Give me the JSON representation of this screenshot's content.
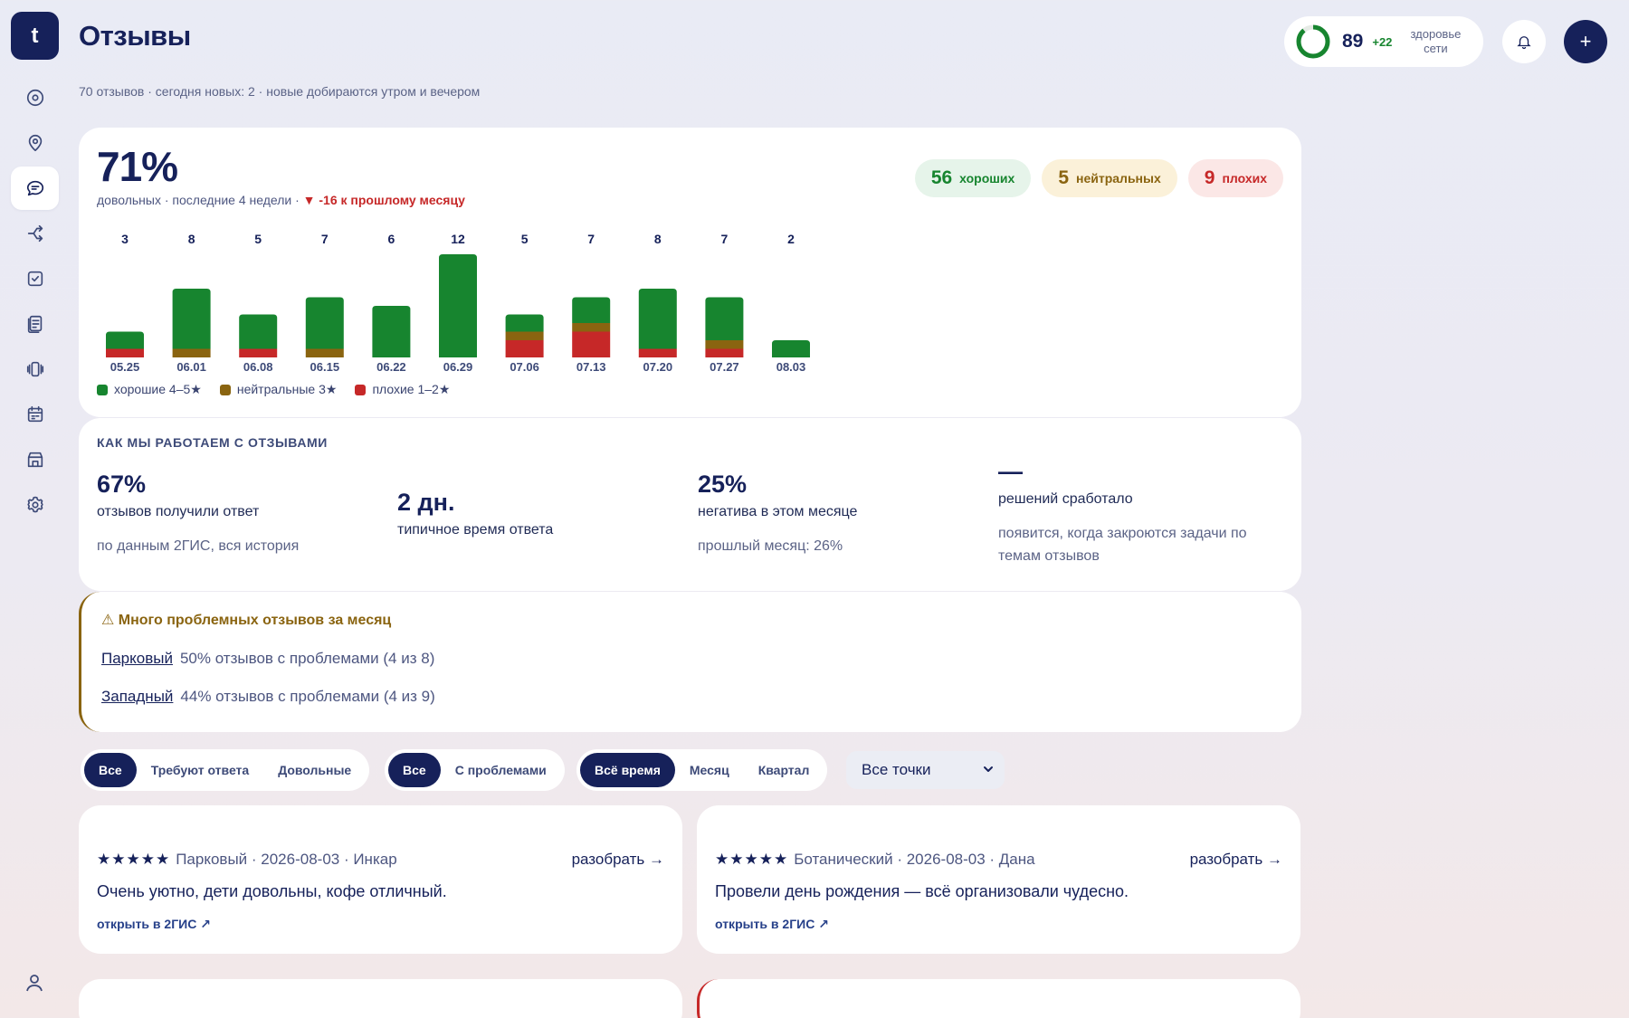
{
  "app": {
    "logo_letter": "t",
    "title": "Отзывы",
    "subtitle": "70 отзывов · сегодня новых: 2 · новые добираются утром и вечером"
  },
  "health": {
    "score": "89",
    "delta": "+22",
    "label": "здоровье сети",
    "fraction": 0.89,
    "color": "#17852f"
  },
  "sidebar": {
    "items": [
      {
        "name": "dashboard-icon"
      },
      {
        "name": "location-pin-icon"
      },
      {
        "name": "reviews-icon",
        "active": true
      },
      {
        "name": "share-icon"
      },
      {
        "name": "tasks-icon"
      },
      {
        "name": "documents-icon"
      },
      {
        "name": "devices-icon"
      },
      {
        "name": "calendar-icon"
      },
      {
        "name": "store-icon"
      },
      {
        "name": "settings-icon"
      }
    ],
    "bottom": "user-icon"
  },
  "summary": {
    "percent": "71%",
    "sub_prefix": "довольных · последние 4 недели · ",
    "sub_change": "▼ -16 к прошлому месяцу",
    "pills": [
      {
        "num": "56",
        "label": "хороших",
        "kind": "good"
      },
      {
        "num": "5",
        "label": "нейтральных",
        "kind": "neutral"
      },
      {
        "num": "9",
        "label": "плохих",
        "kind": "bad"
      }
    ]
  },
  "chart_data": {
    "type": "bar",
    "stacked": true,
    "categories": [
      "05.25",
      "06.01",
      "06.08",
      "06.15",
      "06.22",
      "06.29",
      "07.06",
      "07.13",
      "07.20",
      "07.27",
      "08.03"
    ],
    "totals": [
      3,
      8,
      5,
      7,
      6,
      12,
      5,
      7,
      8,
      7,
      2
    ],
    "series": [
      {
        "name": "хорошие 4–5★",
        "color": "#17852f",
        "values": [
          2,
          7,
          4,
          6,
          6,
          12,
          2,
          3,
          7,
          5,
          2
        ]
      },
      {
        "name": "нейтральные 3★",
        "color": "#8a6410",
        "values": [
          0,
          1,
          0,
          1,
          0,
          0,
          1,
          1,
          0,
          1,
          0
        ]
      },
      {
        "name": "плохие 1–2★",
        "color": "#c62828",
        "values": [
          1,
          0,
          1,
          0,
          0,
          0,
          2,
          3,
          1,
          1,
          0
        ]
      }
    ],
    "ylim": [
      0,
      12
    ],
    "grid": false,
    "legend_position": "bottom-left"
  },
  "how": {
    "title": "КАК МЫ РАБОТАЕМ С ОТЗЫВАМИ",
    "metrics": [
      {
        "value": "67%",
        "label": "отзывов получили ответ",
        "note": "по данным 2ГИС, вся история"
      },
      {
        "value": "2 дн.",
        "label": "типичное время ответа",
        "note": ""
      },
      {
        "value": "25%",
        "label": "негатива в этом месяце",
        "note": "прошлый месяц: 26%"
      },
      {
        "value": "—",
        "label": "решений сработало",
        "note": "появится, когда закроются задачи по темам отзывов"
      }
    ]
  },
  "alert": {
    "title": "⚠ Много проблемных отзывов за месяц",
    "rows": [
      {
        "place": "Парковый",
        "text": "50% отзывов с проблемами (4 из 8)"
      },
      {
        "place": "Западный",
        "text": "44% отзывов с проблемами (4 из 9)"
      }
    ]
  },
  "filters": {
    "group1": [
      "Все",
      "Требуют ответа",
      "Довольные"
    ],
    "group2": [
      "Все",
      "С проблемами"
    ],
    "group3": [
      "Всё время",
      "Месяц",
      "Квартал"
    ],
    "select": "Все точки"
  },
  "reviews": [
    {
      "stars": "★★★★★",
      "meta": "Парковый · 2026-08-03 · Инкар",
      "action": "разобрать →",
      "text": "Очень уютно, дети довольны, кофе отличный.",
      "link": "открыть в 2ГИС ↗"
    },
    {
      "stars": "★★★★★",
      "meta": "Ботанический · 2026-08-03 · Дана",
      "action": "разобрать →",
      "text": "Провели день рождения — всё организовали чудесно.",
      "link": "открыть в 2ГИС ↗"
    }
  ],
  "colors": {
    "primary": "#16215a",
    "good": "#17852f",
    "neutral": "#8a6410",
    "bad": "#c62828"
  }
}
